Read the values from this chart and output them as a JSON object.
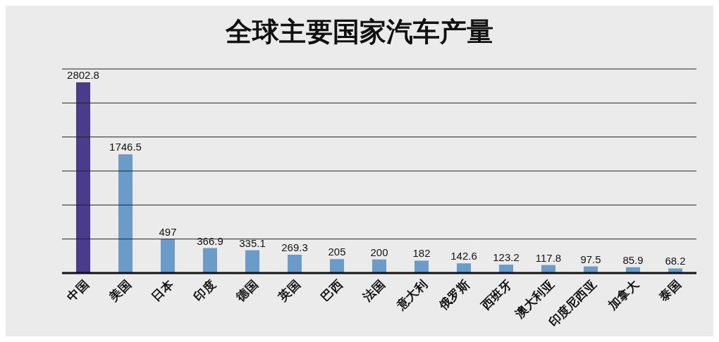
{
  "chart_data": {
    "type": "bar",
    "title": "全球主要国家汽车产量",
    "categories": [
      "中国",
      "美国",
      "日本",
      "印度",
      "德国",
      "英国",
      "巴西",
      "法国",
      "意大利",
      "俄罗斯",
      "西班牙",
      "澳大利亚",
      "印度尼西亚",
      "加拿大",
      "泰国"
    ],
    "values": [
      2802.8,
      1746.5,
      497,
      366.9,
      335.1,
      269.3,
      205,
      200,
      182,
      142.6,
      123.2,
      117.8,
      97.5,
      85.9,
      68.2
    ],
    "colors": [
      "#4b3b8c",
      "#6b9bc8",
      "#6b9bc8",
      "#6b9bc8",
      "#6b9bc8",
      "#6b9bc8",
      "#6b9bc8",
      "#6b9bc8",
      "#6b9bc8",
      "#6b9bc8",
      "#6b9bc8",
      "#6b9bc8",
      "#6b9bc8",
      "#6b9bc8",
      "#6b9bc8"
    ],
    "ylim": [
      0,
      3000
    ],
    "yticks": [
      {
        "value": 0,
        "label": null
      },
      {
        "value": 500,
        "label": null
      },
      {
        "value": 1000,
        "label": null
      },
      {
        "value": 1500,
        "label": null
      },
      {
        "value": 2000,
        "label": null
      },
      {
        "value": 2500,
        "label": null
      },
      {
        "value": 3000,
        "label": null
      }
    ],
    "tick_labels": "x",
    "grid": "y",
    "data_labels": true,
    "legend": false
  }
}
